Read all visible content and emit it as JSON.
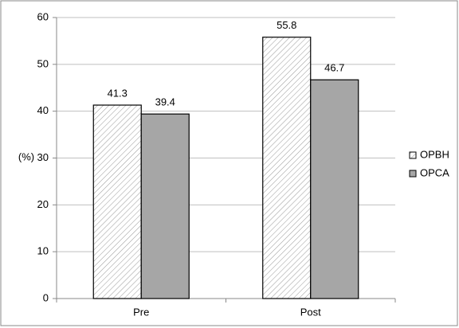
{
  "chart_data": {
    "type": "bar",
    "y_label": "(%)",
    "categories": [
      "Pre",
      "Post"
    ],
    "series": [
      {
        "name": "OPBH",
        "color": "#ffffff",
        "hatch": true,
        "values": [
          41.3,
          55.8
        ]
      },
      {
        "name": "OPCA",
        "color": "#a6a6a6",
        "hatch": false,
        "values": [
          39.4,
          46.7
        ]
      }
    ],
    "ylim": [
      0,
      60
    ],
    "yticks": [
      0,
      10,
      20,
      30,
      40,
      50,
      60
    ],
    "grid": true,
    "legend": "right"
  }
}
